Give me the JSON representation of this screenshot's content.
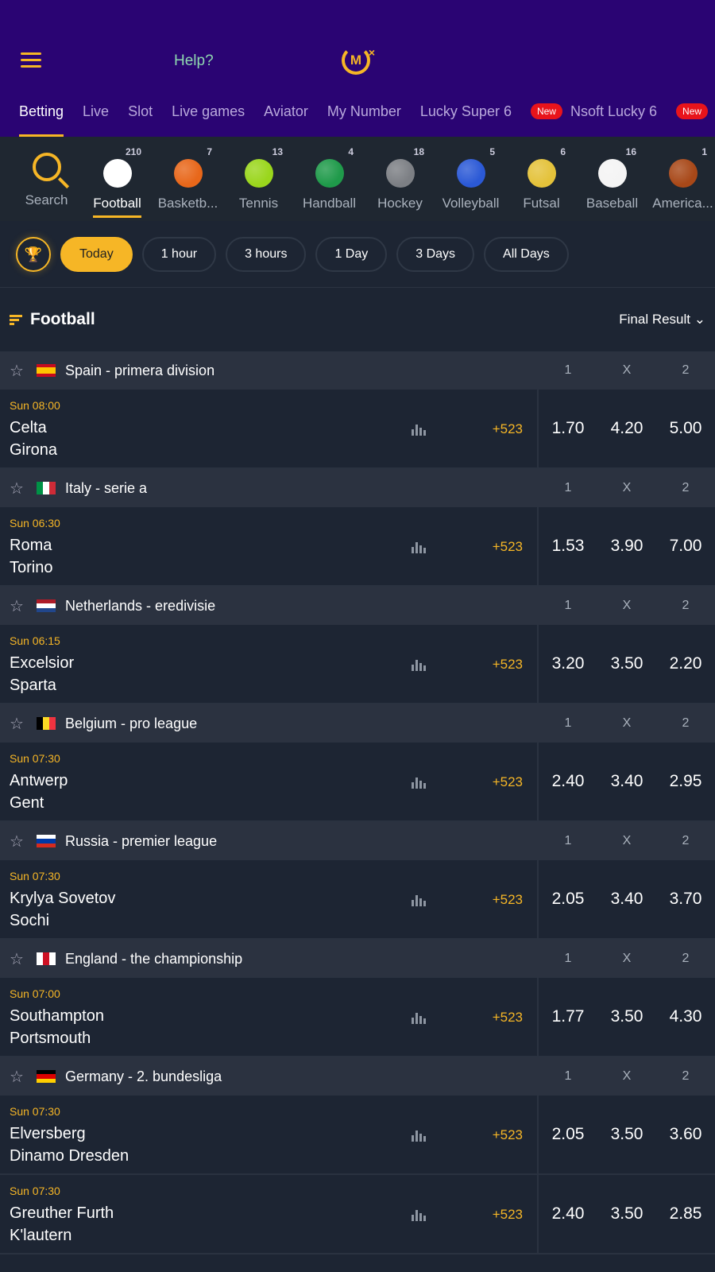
{
  "header": {
    "help": "Help?",
    "logo": "M"
  },
  "tabs": [
    {
      "label": "Betting",
      "active": true
    },
    {
      "label": "Live"
    },
    {
      "label": "Slot"
    },
    {
      "label": "Live games"
    },
    {
      "label": "Aviator"
    },
    {
      "label": "My Number"
    },
    {
      "label": "Lucky Super 6"
    },
    {
      "label": "Nsoft Lucky 6",
      "badge": "New"
    },
    {
      "label": "",
      "badge": "New"
    }
  ],
  "sports": {
    "search": "Search",
    "items": [
      {
        "label": "Football",
        "count": "210",
        "color": "#ffffff",
        "active": true
      },
      {
        "label": "Basketb...",
        "count": "7",
        "color": "#e8671a"
      },
      {
        "label": "Tennis",
        "count": "13",
        "color": "#9ad61c"
      },
      {
        "label": "Handball",
        "count": "4",
        "color": "#1f9a4a"
      },
      {
        "label": "Hockey",
        "count": "18",
        "color": "#7c7f84"
      },
      {
        "label": "Volleyball",
        "count": "5",
        "color": "#2b59d6"
      },
      {
        "label": "Futsal",
        "count": "6",
        "color": "#e4c23a"
      },
      {
        "label": "Baseball",
        "count": "16",
        "color": "#f4f4f4"
      },
      {
        "label": "America...",
        "count": "1",
        "color": "#a84818"
      }
    ]
  },
  "filters": [
    "Today",
    "1 hour",
    "3 hours",
    "1 Day",
    "3 Days",
    "All Days"
  ],
  "section": {
    "title": "Football",
    "market": "Final Result"
  },
  "columns": [
    "1",
    "X",
    "2"
  ],
  "leagues": [
    {
      "name": "Spain - primera division",
      "flag": [
        "#c60b1e",
        "#ffc400",
        "#c60b1e"
      ],
      "dir": "v",
      "matches": [
        {
          "time": "Sun 08:00",
          "home": "Celta",
          "away": "Girona",
          "more": "+523",
          "odds": [
            "1.70",
            "4.20",
            "5.00"
          ]
        }
      ]
    },
    {
      "name": "Italy - serie a",
      "flag": [
        "#009246",
        "#ffffff",
        "#ce2b37"
      ],
      "dir": "h",
      "matches": [
        {
          "time": "Sun 06:30",
          "home": "Roma",
          "away": "Torino",
          "more": "+523",
          "odds": [
            "1.53",
            "3.90",
            "7.00"
          ]
        }
      ]
    },
    {
      "name": "Netherlands - eredivisie",
      "flag": [
        "#ae1c28",
        "#ffffff",
        "#21468b"
      ],
      "dir": "v",
      "matches": [
        {
          "time": "Sun 06:15",
          "home": "Excelsior",
          "away": "Sparta",
          "more": "+523",
          "odds": [
            "3.20",
            "3.50",
            "2.20"
          ]
        }
      ]
    },
    {
      "name": "Belgium - pro league",
      "flag": [
        "#000000",
        "#fdda24",
        "#ef3340"
      ],
      "dir": "h",
      "matches": [
        {
          "time": "Sun 07:30",
          "home": "Antwerp",
          "away": "Gent",
          "more": "+523",
          "odds": [
            "2.40",
            "3.40",
            "2.95"
          ]
        }
      ]
    },
    {
      "name": "Russia - premier league",
      "flag": [
        "#ffffff",
        "#0039a6",
        "#d52b1e"
      ],
      "dir": "v",
      "matches": [
        {
          "time": "Sun 07:30",
          "home": "Krylya Sovetov",
          "away": "Sochi",
          "more": "+523",
          "odds": [
            "2.05",
            "3.40",
            "3.70"
          ]
        }
      ]
    },
    {
      "name": "England - the championship",
      "flag": [
        "#ffffff",
        "#ce1124",
        "#ffffff"
      ],
      "dir": "h",
      "matches": [
        {
          "time": "Sun 07:00",
          "home": "Southampton",
          "away": "Portsmouth",
          "more": "+523",
          "odds": [
            "1.77",
            "3.50",
            "4.30"
          ]
        }
      ]
    },
    {
      "name": "Germany - 2. bundesliga",
      "flag": [
        "#000000",
        "#dd0000",
        "#ffce00"
      ],
      "dir": "v",
      "matches": [
        {
          "time": "Sun 07:30",
          "home": "Elversberg",
          "away": "Dinamo Dresden",
          "more": "+523",
          "odds": [
            "2.05",
            "3.50",
            "3.60"
          ]
        },
        {
          "time": "Sun 07:30",
          "home": "Greuther Furth",
          "away": "K'lautern",
          "more": "+523",
          "odds": [
            "2.40",
            "3.50",
            "2.85"
          ]
        }
      ]
    }
  ]
}
